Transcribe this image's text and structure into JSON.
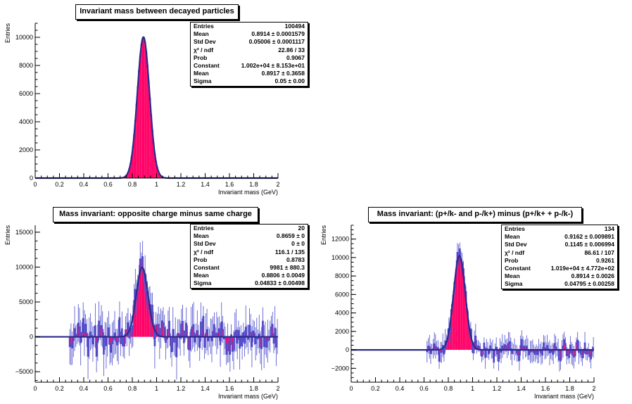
{
  "colors": {
    "fill": "#ff0066",
    "hist_line": "#4b4bcc",
    "fit_line": "#2a2a8a",
    "axis": "#000000"
  },
  "chart_data": [
    {
      "type": "histogram",
      "title": "Invariant mass between decayed particles",
      "xlabel": "Invariant mass (GeV)",
      "ylabel": "Entries",
      "xlim": [
        0,
        2
      ],
      "ylim": [
        0,
        11000
      ],
      "x_ticks": [
        "0",
        "0.2",
        "0.4",
        "0.6",
        "0.8",
        "1",
        "1.2",
        "1.4",
        "1.6",
        "1.8",
        "2"
      ],
      "y_ticks": [
        "0",
        "2000",
        "4000",
        "6000",
        "8000",
        "10000"
      ],
      "y_tick_values": [
        0,
        2000,
        4000,
        6000,
        8000,
        10000
      ],
      "fit": {
        "function": "gaus",
        "constant": 10020,
        "mean": 0.8917,
        "sigma": 0.05
      },
      "noise": {
        "start": 0.0,
        "amp": 0
      },
      "stats": [
        [
          "Entries",
          "100494"
        ],
        [
          "Mean",
          "0.8914 ± 0.0001579"
        ],
        [
          "Std Dev",
          "0.05006 ± 0.0001117"
        ],
        [
          "χ² / ndf",
          "22.86 / 33"
        ],
        [
          "Prob",
          "0.9067"
        ],
        [
          "Constant",
          "1.002e+04 ± 8.153e+01"
        ],
        [
          "Mean",
          "0.8917 ± 0.3658"
        ],
        [
          "Sigma",
          "0.05 ± 0.00"
        ]
      ]
    },
    {
      "type": "histogram",
      "title": "Mass invariant: opposite charge minus same charge",
      "xlabel": "Invariant mass (GeV)",
      "ylabel": "Entries",
      "xlim": [
        0,
        2
      ],
      "ylim": [
        -6500,
        16000
      ],
      "x_ticks": [
        "0",
        "0.2",
        "0.4",
        "0.6",
        "0.8",
        "1",
        "1.2",
        "1.4",
        "1.6",
        "1.8",
        "2"
      ],
      "y_ticks": [
        "−5000",
        "0",
        "5000",
        "10000",
        "15000"
      ],
      "y_tick_values": [
        -5000,
        0,
        5000,
        10000,
        15000
      ],
      "fit": {
        "function": "gaus",
        "constant": 9981,
        "mean": 0.8806,
        "sigma": 0.04833
      },
      "noise": {
        "start": 0.28,
        "amp": 2200
      },
      "stats": [
        [
          "Entries",
          "20"
        ],
        [
          "Mean",
          "0.8659 ±      0"
        ],
        [
          "Std Dev",
          "0 ±      0"
        ],
        [
          "χ² / ndf",
          "116.1 / 135"
        ],
        [
          "Prob",
          "0.8783"
        ],
        [
          "Constant",
          "9981 ± 880.3"
        ],
        [
          "Mean",
          "0.8806 ± 0.0049"
        ],
        [
          "Sigma",
          "0.04833 ± 0.00498"
        ]
      ]
    },
    {
      "type": "histogram",
      "title": "Mass invariant: (p+/k- and p-/k+) minus (p+/k+ + p-/k-)",
      "xlabel": "Invariant mass (GeV)",
      "ylabel": "Entries",
      "xlim": [
        0,
        2
      ],
      "ylim": [
        -3500,
        13500
      ],
      "x_ticks": [
        "0",
        "0.2",
        "0.4",
        "0.6",
        "0.8",
        "1",
        "1.2",
        "1.4",
        "1.6",
        "1.8",
        "2"
      ],
      "y_ticks": [
        "−2000",
        "0",
        "2000",
        "4000",
        "6000",
        "8000",
        "10000",
        "12000"
      ],
      "y_tick_values": [
        -2000,
        0,
        2000,
        4000,
        6000,
        8000,
        10000,
        12000
      ],
      "fit": {
        "function": "gaus",
        "constant": 10190,
        "mean": 0.8914,
        "sigma": 0.04795
      },
      "noise": {
        "start": 0.62,
        "amp": 900
      },
      "stats": [
        [
          "Entries",
          "134"
        ],
        [
          "Mean",
          "0.9162 ± 0.009891"
        ],
        [
          "Std Dev",
          "0.1145 ± 0.006994"
        ],
        [
          "χ² / ndf",
          "86.61 / 107"
        ],
        [
          "Prob",
          "0.9261"
        ],
        [
          "Constant",
          "1.019e+04 ± 4.772e+02"
        ],
        [
          "Mean",
          "0.8914 ± 0.0026"
        ],
        [
          "Sigma",
          "0.04795 ± 0.00258"
        ]
      ]
    }
  ]
}
